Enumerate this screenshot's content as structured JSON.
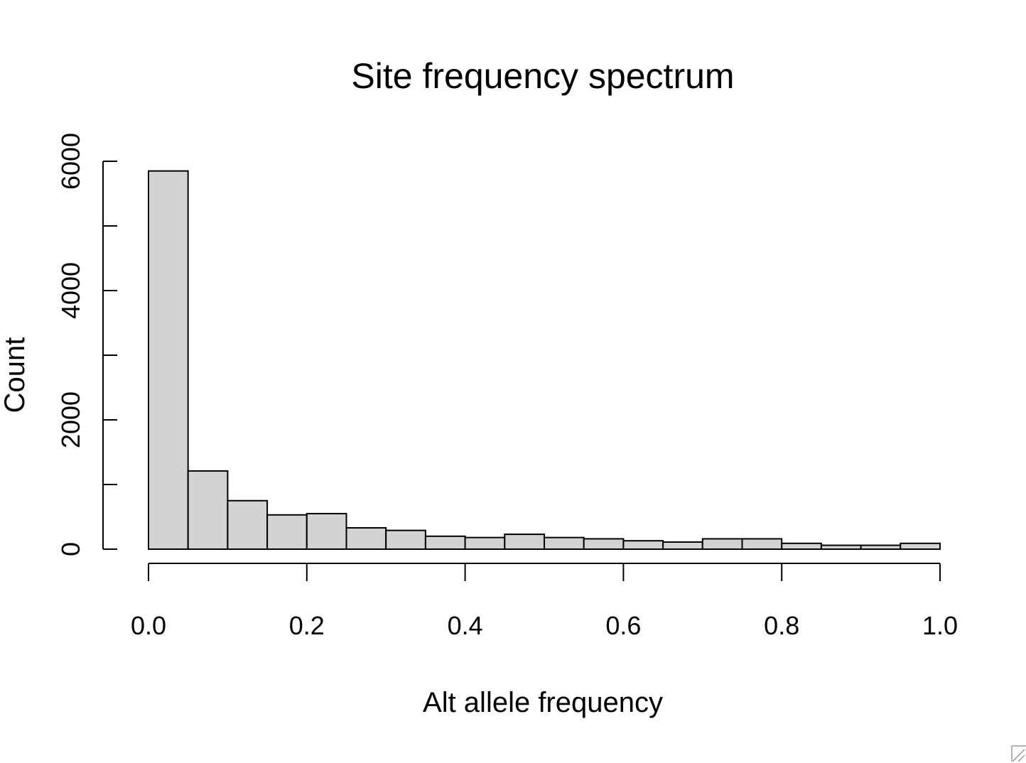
{
  "chart_data": {
    "type": "bar",
    "title": "Site frequency spectrum",
    "xlabel": "Alt allele frequency",
    "ylabel": "Count",
    "xlim": [
      0,
      1
    ],
    "ylim": [
      0,
      6000
    ],
    "grid": false,
    "bin_width": 0.05,
    "bin_edges": [
      0.0,
      0.05,
      0.1,
      0.15,
      0.2,
      0.25,
      0.3,
      0.35,
      0.4,
      0.45,
      0.5,
      0.55,
      0.6,
      0.65,
      0.7,
      0.75,
      0.8,
      0.85,
      0.9,
      0.95,
      1.0
    ],
    "values": [
      5850,
      1210,
      750,
      530,
      550,
      330,
      290,
      200,
      180,
      230,
      180,
      160,
      130,
      110,
      160,
      160,
      90,
      60,
      60,
      90
    ],
    "x_ticks": [
      0.0,
      0.2,
      0.4,
      0.6,
      0.8,
      1.0
    ],
    "x_tick_labels": [
      "0.0",
      "0.2",
      "0.4",
      "0.6",
      "0.8",
      "1.0"
    ],
    "y_ticks": [
      0,
      1000,
      2000,
      3000,
      4000,
      5000,
      6000
    ],
    "y_tick_labels": [
      "0",
      "",
      "2000",
      "",
      "4000",
      "",
      "6000"
    ],
    "bar_color": "#d3d3d3",
    "edge_color": "#000000"
  }
}
